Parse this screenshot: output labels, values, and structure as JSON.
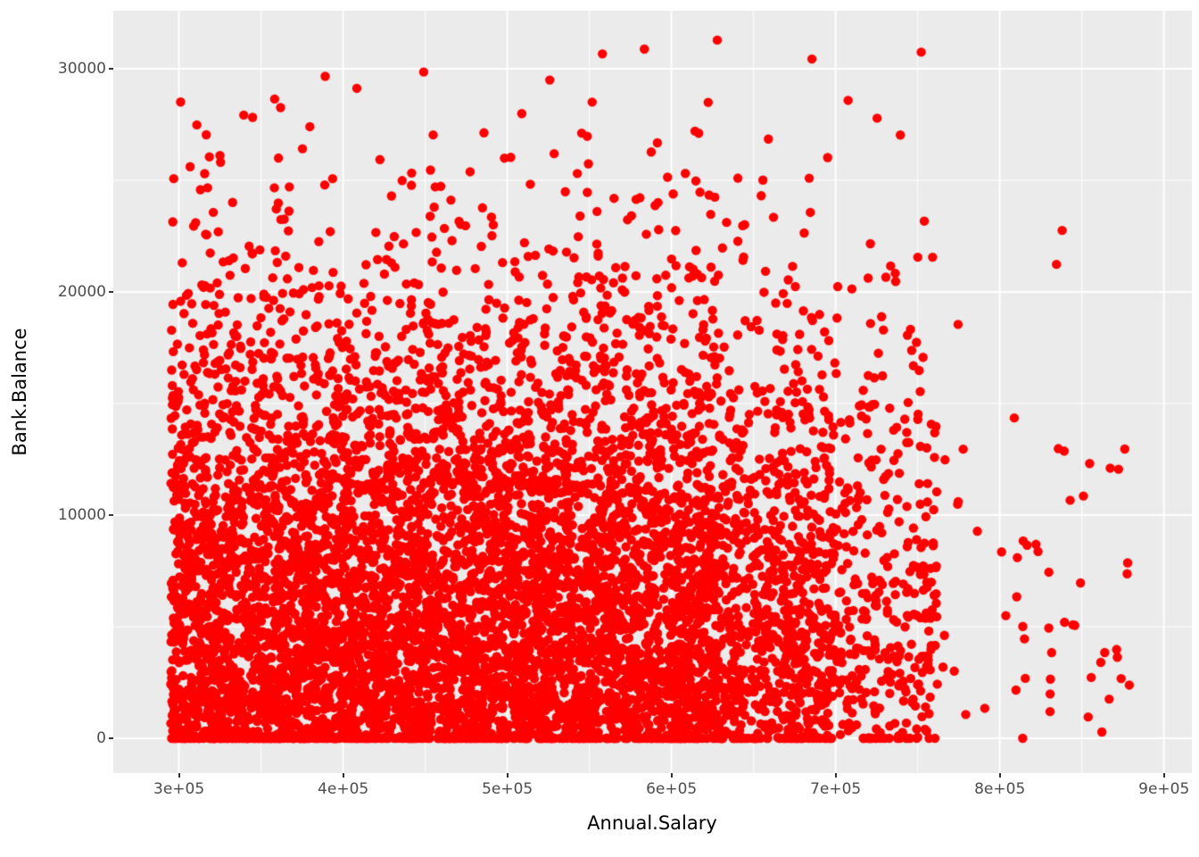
{
  "chart_data": {
    "type": "scatter",
    "title": "",
    "xlabel": "Annual.Salary",
    "ylabel": "Bank.Balance",
    "x_tick_labels": [
      "3e+05",
      "4e+05",
      "5e+05",
      "6e+05",
      "7e+05",
      "8e+05",
      "9e+05"
    ],
    "x_tick_values": [
      300000,
      400000,
      500000,
      600000,
      700000,
      800000,
      900000
    ],
    "y_tick_labels": [
      "0",
      "10000",
      "20000",
      "30000"
    ],
    "y_tick_values": [
      0,
      10000,
      20000,
      30000
    ],
    "x_minor_values": [
      350000,
      450000,
      550000,
      650000,
      750000,
      850000
    ],
    "y_minor_values": [
      5000,
      15000,
      25000
    ],
    "x_domain_visible": [
      260000,
      917000
    ],
    "y_domain_visible": [
      -1560,
      32600
    ],
    "x_data_range": [
      295000,
      880000
    ],
    "y_data_range": [
      0,
      31200
    ],
    "grid": "major+minor",
    "legend_position": "none",
    "point_color": "#FF0000",
    "point_radius_px": 5.2,
    "n_points": 7500,
    "seed": 20240513,
    "x_distribution": {
      "type": "piecewise-uniform",
      "segments": [
        [
          295000,
          630000,
          0.845
        ],
        [
          630000,
          700000,
          0.105
        ],
        [
          700000,
          762000,
          0.043
        ],
        [
          762000,
          880000,
          0.007
        ]
      ]
    },
    "y_distribution": {
      "type": "zero-inflated-halfnormal",
      "zero_inflation": 0.055,
      "halfnormal_sigma": 9500,
      "max": 31300
    },
    "description": "Dense cloud of red points: Bank.Balance (0 to ~31000) vs Annual.Salary (3e+05 to ~8.8e+05). Density is heavy between salary 3e+05 and 6.3e+05 and balance 0-17000, thinning toward higher salary and higher balance; a dense horizontal row of points lies at balance = 0; isolated outliers reach ~31000 near salary 3.3e+05 and ~30000 near 6.3e+05."
  },
  "theme": {
    "panel_bg": "#EBEBEB",
    "grid_color": "#FFFFFF",
    "tick_color": "#333333",
    "tick_label_color": "#4D4D4D",
    "axis_title_color": "#000000",
    "outer_bg": "#FFFFFF"
  }
}
